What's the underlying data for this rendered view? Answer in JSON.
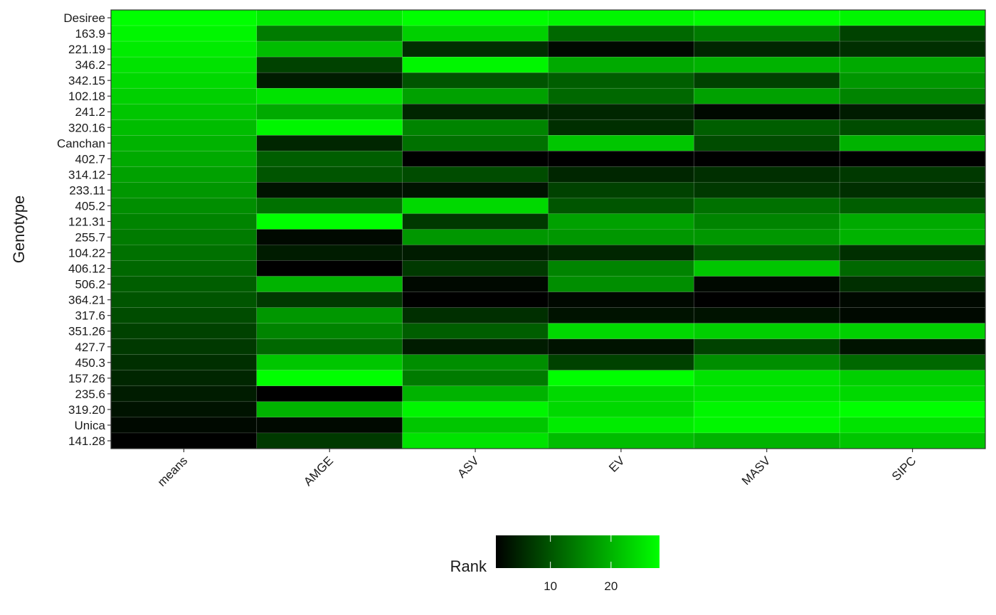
{
  "chart_data": {
    "type": "heatmap",
    "title": "",
    "xlabel": "",
    "ylabel": "Genotype",
    "x_categories": [
      "means",
      "AMGE",
      "ASV",
      "EV",
      "MASV",
      "SIPC"
    ],
    "y_categories": [
      "Desiree",
      "163.9",
      "221.19",
      "346.2",
      "342.15",
      "102.18",
      "241.2",
      "320.16",
      "Canchan",
      "402.7",
      "314.12",
      "233.11",
      "405.2",
      "121.31",
      "255.7",
      "104.22",
      "406.12",
      "506.2",
      "364.21",
      "317.6",
      "351.26",
      "427.7",
      "450.3",
      "157.26",
      "235.6",
      "319.20",
      "Unica",
      "141.28"
    ],
    "values": [
      [
        28,
        26,
        28,
        27,
        28,
        27
      ],
      [
        27,
        14,
        23,
        12,
        14,
        8
      ],
      [
        26,
        21,
        6,
        2,
        5,
        6
      ],
      [
        25,
        8,
        27,
        19,
        20,
        19
      ],
      [
        24,
        4,
        10,
        11,
        8,
        17
      ],
      [
        23,
        25,
        18,
        12,
        18,
        15
      ],
      [
        22,
        19,
        5,
        5,
        2,
        4
      ],
      [
        21,
        27,
        15,
        6,
        11,
        9
      ],
      [
        20,
        5,
        13,
        22,
        9,
        20
      ],
      [
        19,
        11,
        1,
        1,
        1,
        1
      ],
      [
        18,
        10,
        9,
        5,
        6,
        7
      ],
      [
        17,
        3,
        3,
        8,
        7,
        6
      ],
      [
        16,
        13,
        24,
        10,
        13,
        11
      ],
      [
        15,
        28,
        7,
        18,
        15,
        19
      ],
      [
        14,
        2,
        17,
        17,
        17,
        20
      ],
      [
        13,
        4,
        4,
        5,
        10,
        6
      ],
      [
        12,
        1,
        7,
        15,
        22,
        12
      ],
      [
        11,
        20,
        2,
        16,
        2,
        6
      ],
      [
        10,
        7,
        1,
        2,
        1,
        2
      ],
      [
        9,
        17,
        6,
        3,
        3,
        2
      ],
      [
        8,
        15,
        11,
        24,
        23,
        23
      ],
      [
        7,
        12,
        4,
        3,
        8,
        3
      ],
      [
        6,
        22,
        16,
        8,
        16,
        12
      ],
      [
        5,
        28,
        14,
        28,
        25,
        23
      ],
      [
        4,
        0,
        20,
        24,
        25,
        24
      ],
      [
        3,
        20,
        27,
        24,
        27,
        28
      ],
      [
        2,
        2,
        22,
        26,
        27,
        25
      ],
      [
        1,
        7,
        25,
        21,
        20,
        22
      ]
    ],
    "color_scale": {
      "low": "#000000",
      "high": "#00ff00",
      "range": [
        1,
        28
      ]
    },
    "legend": {
      "title": "Rank",
      "ticks": [
        "10",
        "20"
      ],
      "tick_values": [
        10,
        20
      ],
      "placement": "bottom"
    },
    "grid": false
  }
}
